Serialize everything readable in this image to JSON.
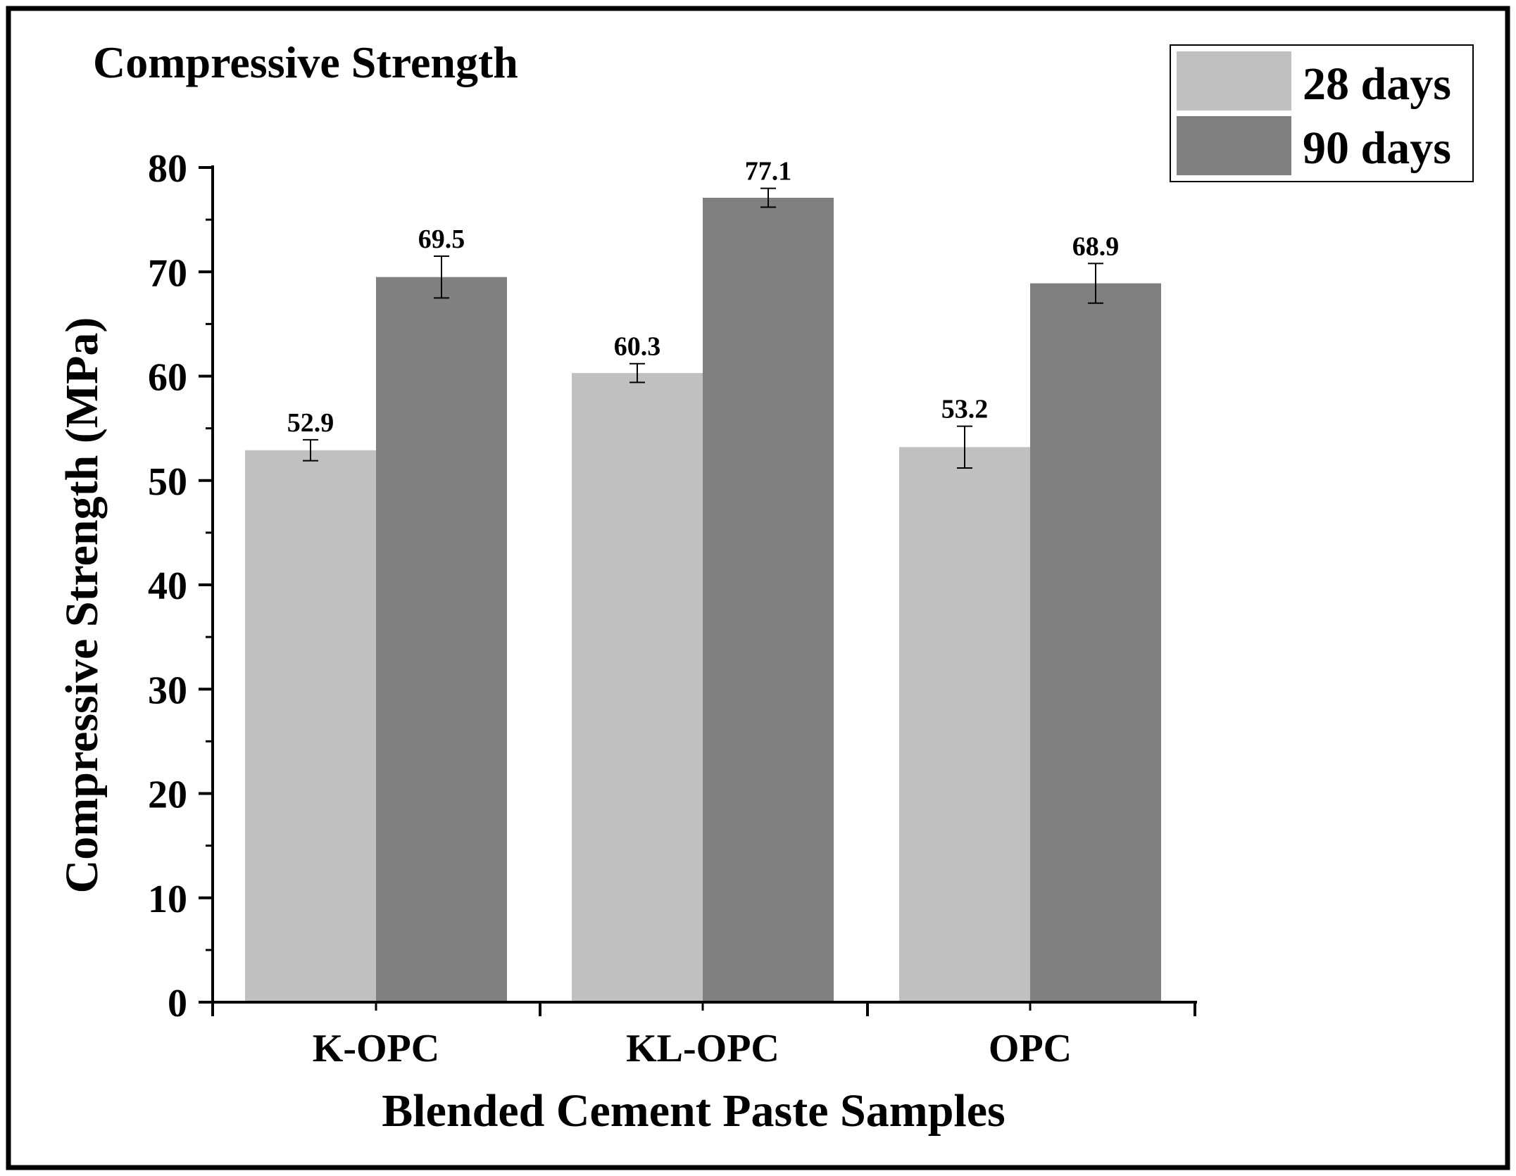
{
  "chart_data": {
    "type": "bar",
    "title": "Compressive Strength",
    "xlabel": "Blended Cement Paste Samples",
    "ylabel": "Compressive Strength (MPa)",
    "categories": [
      "K-OPC",
      "KL-OPC",
      "OPC"
    ],
    "ylim": [
      0,
      80
    ],
    "yticks": [
      0,
      10,
      20,
      30,
      40,
      50,
      60,
      70,
      80
    ],
    "yticks_labels": [
      "0",
      "10",
      "20",
      "30",
      "40",
      "50",
      "60",
      "70",
      "80"
    ],
    "legend_position": "top-right",
    "series": [
      {
        "name": "28 days",
        "color": "#c0c0c0",
        "values": [
          52.9,
          60.3,
          53.2
        ],
        "labels": [
          "52.9",
          "60.3",
          "53.2"
        ],
        "errors": [
          1.0,
          0.9,
          2.0
        ]
      },
      {
        "name": "90 days",
        "color": "#808080",
        "values": [
          69.5,
          77.1,
          68.9
        ],
        "labels": [
          "69.5",
          "77.1",
          "68.9"
        ],
        "errors": [
          2.0,
          0.9,
          1.9
        ]
      }
    ]
  }
}
